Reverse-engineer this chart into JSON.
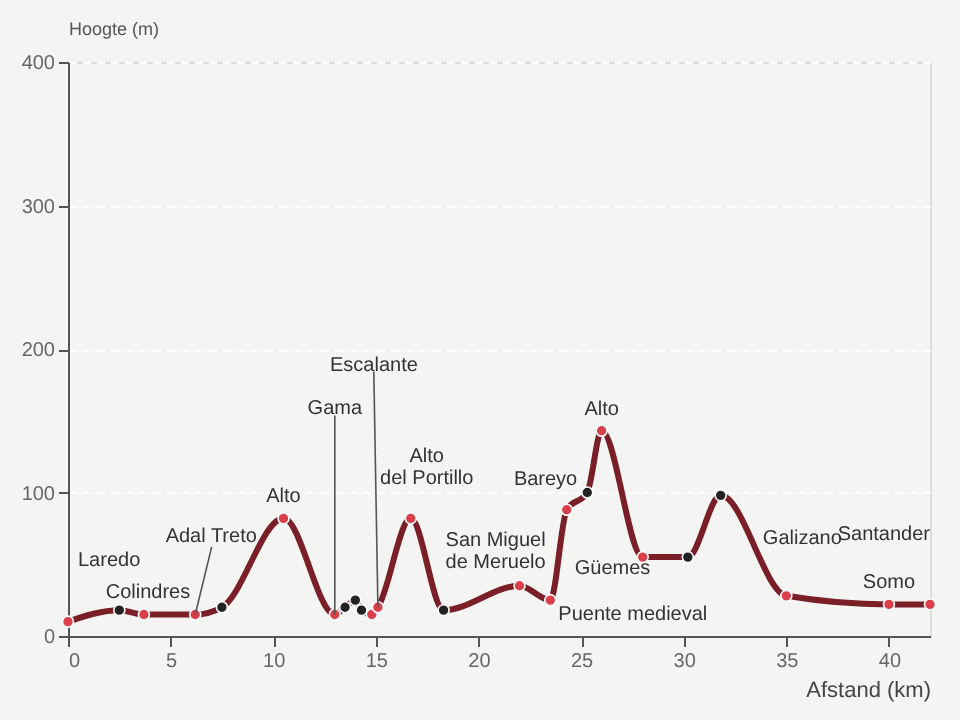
{
  "chart_data": {
    "type": "line",
    "xlabel": "Afstand (km)",
    "ylabel": "Hoogte (m)",
    "x": [
      0,
      2.5,
      3.7,
      6.2,
      7.5,
      10.5,
      13,
      13.5,
      14,
      14.3,
      14.8,
      15.1,
      16.7,
      18.3,
      22,
      23.5,
      24.3,
      25.3,
      26,
      28,
      30.2,
      31.8,
      35,
      40,
      42
    ],
    "series": [
      {
        "color": "#7a1f28",
        "values": [
          10,
          18,
          15,
          15,
          20,
          82,
          15,
          20,
          25,
          18,
          15,
          20,
          82,
          18,
          35,
          25,
          88,
          100,
          143,
          55,
          55,
          98,
          28,
          22,
          22
        ],
        "colors": [
          "#d9404a",
          "#222222",
          "#d9404a",
          "#d9404a",
          "#222222",
          "#d9404a",
          "#d9404a",
          "#222222",
          "#222222",
          "#222222",
          "#d9404a",
          "#d9404a",
          "#d9404a",
          "#222222",
          "#d9404a",
          "#d9404a",
          "#d9404a",
          "#222222",
          "#d9404a",
          "#d9404a",
          "#222222",
          "#222222",
          "#d9404a",
          "#d9404a",
          "#d9404a"
        ]
      }
    ],
    "xlim": [
      0,
      42
    ],
    "xticks": [
      0,
      5,
      10,
      15,
      20,
      25,
      30,
      35,
      40
    ],
    "ylim": [
      0,
      400
    ],
    "yticks": [
      0,
      100,
      200,
      300,
      400
    ],
    "grid": "y",
    "marker": "circle",
    "line_style": "solid",
    "annotations": [
      {
        "text": "Laredo",
        "x": 0,
        "y": 10
      },
      {
        "text": "Colindres",
        "x": 3.7,
        "y": 15
      },
      {
        "text": "Adal Treto",
        "x": 6.2,
        "y": 15
      },
      {
        "text": "Alto",
        "x": 10.5,
        "y": 82
      },
      {
        "text": "Gama",
        "x": 13,
        "y": 15
      },
      {
        "text": "Escalante",
        "x": 15.1,
        "y": 20
      },
      {
        "text": "Alto\ndel Portillo",
        "x": 16.7,
        "y": 82
      },
      {
        "text": "San Miguel\nde Meruelo",
        "x": 18.3,
        "y": 18
      },
      {
        "text": "Bareyo",
        "x": 25.3,
        "y": 100
      },
      {
        "text": "Alto",
        "x": 26,
        "y": 143
      },
      {
        "text": "Güemes",
        "x": 24.3,
        "y": 88
      },
      {
        "text": "Puente medieval",
        "x": 23.5,
        "y": 25
      },
      {
        "text": "Galizano",
        "x": 35,
        "y": 28
      },
      {
        "text": "Santander",
        "x": 42,
        "y": 22
      },
      {
        "text": "Somo",
        "x": 40,
        "y": 22
      }
    ]
  }
}
